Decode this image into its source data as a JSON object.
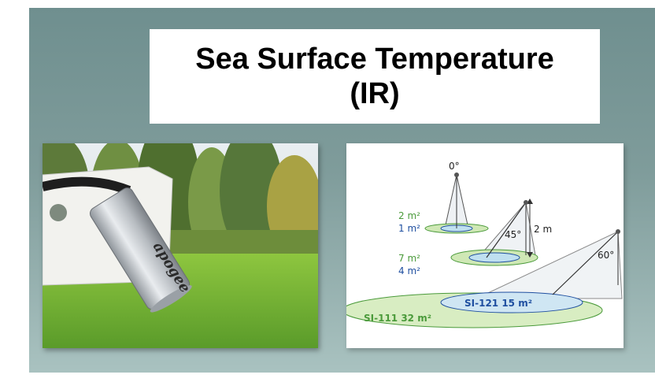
{
  "title": {
    "line1": "Sea Surface Temperature",
    "line2": "(IR)"
  },
  "photo": {
    "brand_text": "apogee"
  },
  "diagram": {
    "angle_0": "0°",
    "angle_45": "45°",
    "angle_60": "60°",
    "height": "2 m",
    "area_0_green": "2 m²",
    "area_0_blue": "1 m²",
    "area_45_green": "7 m²",
    "area_45_blue": "4 m²",
    "si121": "SI-121 15 m²",
    "si111": "SI-111 32 m²",
    "colors": {
      "green": "#4a9a3a",
      "blue": "#1f4fa0"
    }
  }
}
